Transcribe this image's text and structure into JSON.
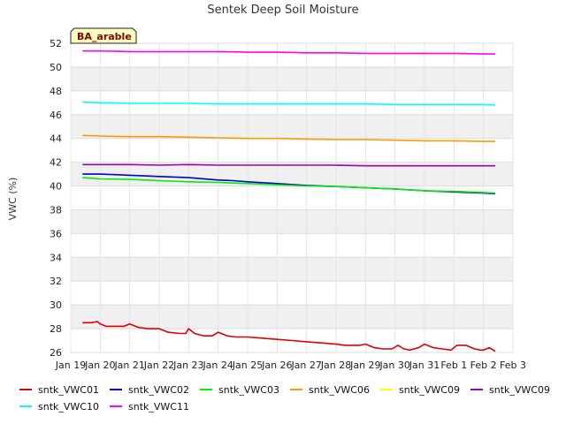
{
  "chart_data": {
    "type": "line",
    "title": "Sentek Deep Soil Moisture",
    "xlabel": "",
    "ylabel": "VWC (%)",
    "site_label": "BA_arable",
    "x_ticks": [
      "Jan 19",
      "Jan 20",
      "Jan 21",
      "Jan 22",
      "Jan 23",
      "Jan 24",
      "Jan 25",
      "Jan 26",
      "Jan 27",
      "Jan 28",
      "Jan 29",
      "Jan 30",
      "Jan 31",
      "Feb 1",
      "Feb 2",
      "Feb 3"
    ],
    "x_range_days": [
      0,
      15
    ],
    "ylim": [
      26,
      52
    ],
    "y_ticks": [
      "26",
      "28",
      "30",
      "32",
      "34",
      "36",
      "38",
      "40",
      "42",
      "44",
      "46",
      "48",
      "50",
      "52"
    ],
    "grid": true,
    "legend_position": "bottom",
    "series": [
      {
        "name": "sntk_VWC01",
        "color": "#e00000",
        "x": [
          0.4,
          0.7,
          0.9,
          1.0,
          1.2,
          1.5,
          1.8,
          2.0,
          2.3,
          2.6,
          3.0,
          3.3,
          3.7,
          3.9,
          4.0,
          4.2,
          4.5,
          4.8,
          5.0,
          5.3,
          5.6,
          6.0,
          6.5,
          7.0,
          7.5,
          8.0,
          8.5,
          9.0,
          9.3,
          9.6,
          9.8,
          10.0,
          10.3,
          10.6,
          10.9,
          11.1,
          11.3,
          11.5,
          11.8,
          12.0,
          12.3,
          12.6,
          12.9,
          13.1,
          13.4,
          13.7,
          13.9,
          14.0,
          14.2,
          14.4
        ],
        "y": [
          28.5,
          28.5,
          28.6,
          28.4,
          28.2,
          28.2,
          28.2,
          28.4,
          28.1,
          28.0,
          28.0,
          27.7,
          27.6,
          27.6,
          28.0,
          27.6,
          27.4,
          27.4,
          27.7,
          27.4,
          27.3,
          27.3,
          27.2,
          27.1,
          27.0,
          26.9,
          26.8,
          26.7,
          26.6,
          26.6,
          26.6,
          26.7,
          26.4,
          26.3,
          26.3,
          26.6,
          26.3,
          26.2,
          26.4,
          26.7,
          26.4,
          26.3,
          26.2,
          26.6,
          26.6,
          26.3,
          26.2,
          26.2,
          26.4,
          26.1
        ]
      },
      {
        "name": "sntk_VWC02",
        "color": "#0000cc",
        "x": [
          0.4,
          1.0,
          1.5,
          2.0,
          2.5,
          3.0,
          3.5,
          4.0,
          5.0,
          5.5,
          6.0,
          7.0,
          8.0,
          9.0,
          10.0,
          11.0,
          12.0,
          13.0,
          13.5,
          14.0,
          14.4
        ],
        "y": [
          41.0,
          41.0,
          40.95,
          40.9,
          40.85,
          40.8,
          40.75,
          40.7,
          40.5,
          40.45,
          40.35,
          40.2,
          40.05,
          39.95,
          39.85,
          39.75,
          39.6,
          39.5,
          39.45,
          39.4,
          39.35
        ]
      },
      {
        "name": "sntk_VWC03",
        "color": "#00ee00",
        "x": [
          0.4,
          1.0,
          2.0,
          3.0,
          4.0,
          5.0,
          6.0,
          7.0,
          8.0,
          9.0,
          10.0,
          11.0,
          12.0,
          13.0,
          14.0,
          14.4
        ],
        "y": [
          40.7,
          40.6,
          40.55,
          40.45,
          40.35,
          40.3,
          40.2,
          40.1,
          40.0,
          39.95,
          39.85,
          39.75,
          39.6,
          39.55,
          39.45,
          39.4
        ]
      },
      {
        "name": "sntk_VWC06",
        "color": "#ff9900",
        "x": [
          0.4,
          1.0,
          2.0,
          3.0,
          4.0,
          5.0,
          6.0,
          7.0,
          8.0,
          9.0,
          10.0,
          11.0,
          12.0,
          13.0,
          14.0,
          14.4
        ],
        "y": [
          44.25,
          44.2,
          44.15,
          44.15,
          44.1,
          44.05,
          44.0,
          44.0,
          43.95,
          43.9,
          43.9,
          43.85,
          43.8,
          43.8,
          43.75,
          43.75
        ]
      },
      {
        "name": "sntk_VWC09",
        "color": "#ffff00",
        "x": [
          0.4,
          14.4
        ],
        "y": [
          41.8,
          41.7
        ]
      },
      {
        "name": "sntk_VWC09",
        "color": "#9900cc",
        "x": [
          0.4,
          1.0,
          2.0,
          3.0,
          4.0,
          5.0,
          6.0,
          7.0,
          8.0,
          9.0,
          10.0,
          11.0,
          12.0,
          13.0,
          14.0,
          14.4
        ],
        "y": [
          41.8,
          41.8,
          41.8,
          41.75,
          41.8,
          41.75,
          41.75,
          41.75,
          41.75,
          41.75,
          41.7,
          41.7,
          41.7,
          41.7,
          41.7,
          41.7
        ]
      },
      {
        "name": "sntk_VWC10",
        "color": "#00ffff",
        "x": [
          0.4,
          1.0,
          2.0,
          3.0,
          4.0,
          5.0,
          6.0,
          7.0,
          8.0,
          9.0,
          10.0,
          11.0,
          12.0,
          13.0,
          14.0,
          14.4
        ],
        "y": [
          47.05,
          47.0,
          46.95,
          46.95,
          46.95,
          46.9,
          46.9,
          46.9,
          46.9,
          46.9,
          46.9,
          46.85,
          46.85,
          46.85,
          46.85,
          46.8
        ]
      },
      {
        "name": "sntk_VWC11",
        "color": "#ff00ff",
        "x": [
          0.4,
          1.0,
          2.0,
          3.0,
          4.0,
          5.0,
          6.0,
          7.0,
          8.0,
          9.0,
          10.0,
          11.0,
          12.0,
          13.0,
          14.0,
          14.4
        ],
        "y": [
          51.35,
          51.35,
          51.3,
          51.3,
          51.3,
          51.3,
          51.25,
          51.25,
          51.2,
          51.2,
          51.15,
          51.15,
          51.15,
          51.15,
          51.1,
          51.1
        ]
      }
    ]
  }
}
